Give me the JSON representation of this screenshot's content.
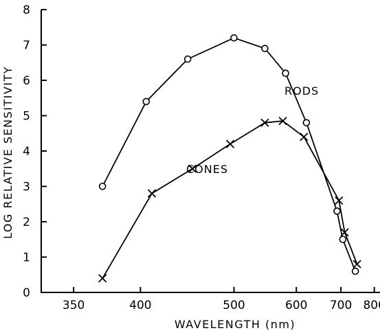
{
  "chart_data": {
    "type": "line",
    "xlabel": "WAVELENGTH (nm)",
    "ylabel": "LOG RELATIVE SENSITIVITY",
    "x_scale": "reciprocal",
    "xlim": [
      330,
      820
    ],
    "ylim": [
      0,
      8
    ],
    "x_ticks": [
      350,
      400,
      500,
      600,
      700,
      800
    ],
    "y_ticks": [
      0,
      1,
      2,
      3,
      4,
      5,
      6,
      7,
      8
    ],
    "grid": false,
    "series": [
      {
        "name": "RODS",
        "marker": "circle",
        "x": [
          370,
          405,
          445,
          500,
          545,
          580,
          620,
          690,
          705,
          740
        ],
        "y": [
          3.0,
          5.4,
          6.6,
          7.2,
          6.9,
          6.2,
          4.8,
          2.3,
          1.5,
          0.6
        ]
      },
      {
        "name": "CONES",
        "marker": "x",
        "x": [
          370,
          410,
          450,
          495,
          545,
          575,
          615,
          695,
          710,
          745
        ],
        "y": [
          0.4,
          2.8,
          3.5,
          4.2,
          4.8,
          4.85,
          4.4,
          2.6,
          1.7,
          0.8
        ]
      }
    ]
  }
}
